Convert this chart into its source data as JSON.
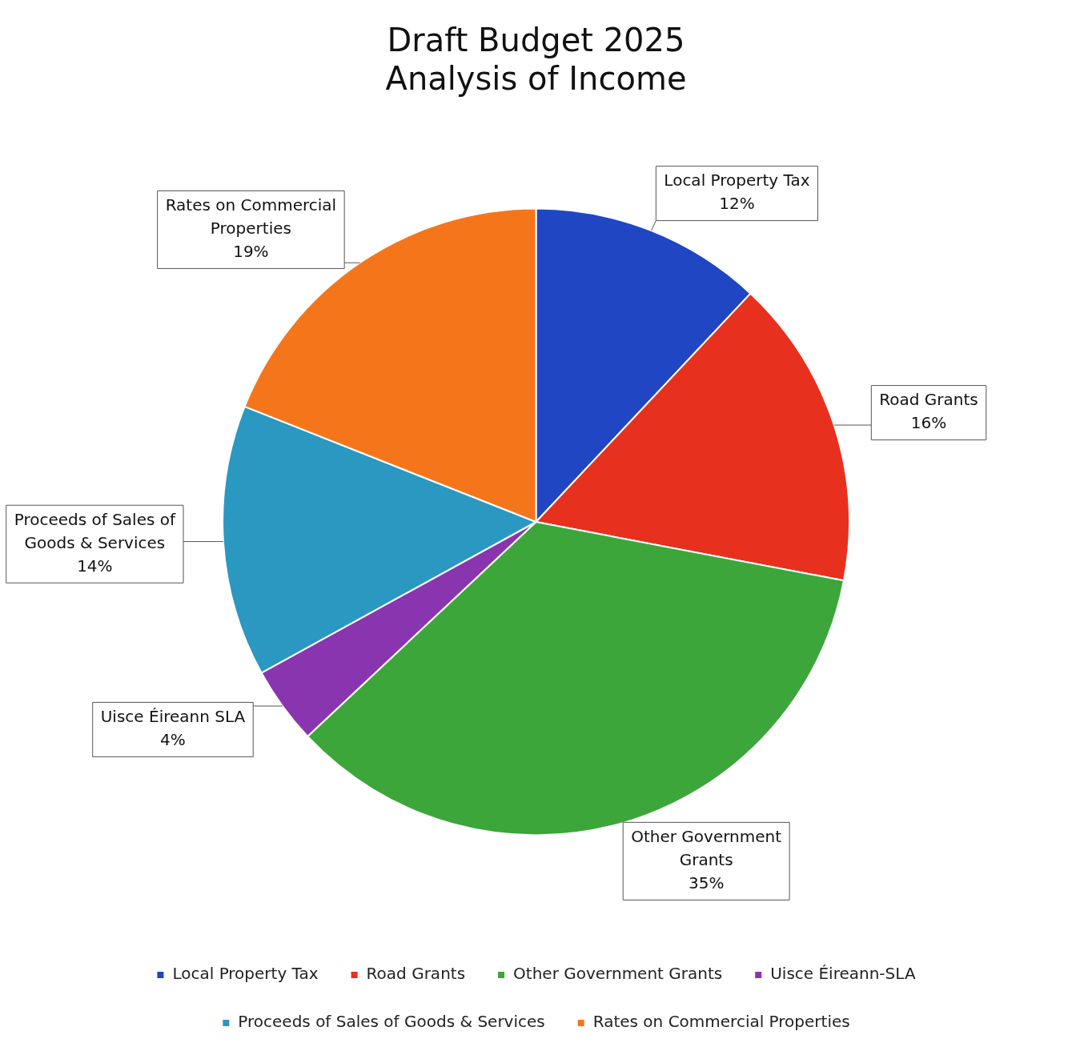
{
  "chart_data": {
    "type": "pie",
    "title": "Draft Budget 2025\nAnalysis of Income",
    "categories": [
      "Local Property Tax",
      "Road Grants",
      "Other Government Grants",
      "Uisce Éireann-SLA",
      "Proceeds of Sales of Goods & Services",
      "Rates on Commercial Properties"
    ],
    "values": [
      12,
      16,
      35,
      4,
      14,
      19
    ],
    "colors": [
      "#2046c4",
      "#e8301e",
      "#3ca63a",
      "#8a35b0",
      "#2a98c0",
      "#f5761a"
    ],
    "value_labels": [
      "Local Property Tax\n12%",
      "Road Grants\n16%",
      "Other Government\nGrants\n35%",
      "Uisce Éireann SLA\n4%",
      "Proceeds of Sales of\nGoods & Services\n14%",
      "Rates on Commercial\nProperties\n19%"
    ],
    "legend": "bottom"
  }
}
